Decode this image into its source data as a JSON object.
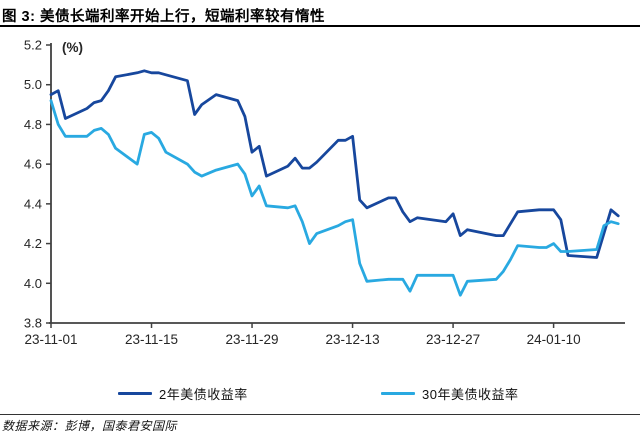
{
  "header": {
    "title": "图 3:  美债长端利率开始上行，短端利率较有惰性"
  },
  "legend": [
    {
      "label": "2年美债收益率"
    },
    {
      "label": "30年美债收益率"
    }
  ],
  "footer": {
    "source": "数据来源：彭博，国泰君安国际"
  },
  "colors": {
    "series_2y": "#17479D",
    "series_30y": "#29A9E1",
    "axis": "#404040",
    "tick_text": "#262626"
  },
  "chart_data": {
    "type": "line",
    "title": "图 3: 美债长端利率开始上行，短端利率较有惰性",
    "unit_label": "(%)",
    "xlabel": "",
    "ylabel": "%",
    "ylim": [
      3.8,
      5.2
    ],
    "y_ticks": [
      "5.2",
      "5.0",
      "4.8",
      "4.6",
      "4.4",
      "4.2",
      "4.0",
      "3.8"
    ],
    "x_start": "23-11-01",
    "x_end": "24-01-19",
    "x_ticks": [
      "23-11-01",
      "23-11-15",
      "23-11-29",
      "23-12-13",
      "23-12-27",
      "24-01-10"
    ],
    "grid": false,
    "legend_position": "bottom",
    "dates": [
      "23-11-01",
      "23-11-02",
      "23-11-03",
      "23-11-06",
      "23-11-07",
      "23-11-08",
      "23-11-09",
      "23-11-10",
      "23-11-13",
      "23-11-14",
      "23-11-15",
      "23-11-16",
      "23-11-17",
      "23-11-20",
      "23-11-21",
      "23-11-22",
      "23-11-24",
      "23-11-27",
      "23-11-28",
      "23-11-29",
      "23-11-30",
      "23-12-01",
      "23-12-04",
      "23-12-05",
      "23-12-06",
      "23-12-07",
      "23-12-08",
      "23-12-11",
      "23-12-12",
      "23-12-13",
      "23-12-14",
      "23-12-15",
      "23-12-18",
      "23-12-19",
      "23-12-20",
      "23-12-21",
      "23-12-22",
      "23-12-26",
      "23-12-27",
      "23-12-28",
      "23-12-29",
      "24-01-02",
      "24-01-03",
      "24-01-04",
      "24-01-05",
      "24-01-08",
      "24-01-09",
      "24-01-10",
      "24-01-11",
      "24-01-12",
      "24-01-16",
      "24-01-17",
      "24-01-18",
      "24-01-19"
    ],
    "series": [
      {
        "name": "2年美债收益率",
        "color": "#17479D",
        "values": [
          4.95,
          4.97,
          4.83,
          4.88,
          4.91,
          4.92,
          4.97,
          5.04,
          5.06,
          5.07,
          5.06,
          5.06,
          5.05,
          5.02,
          4.85,
          4.9,
          4.95,
          4.92,
          4.84,
          4.66,
          4.69,
          4.54,
          4.59,
          4.63,
          4.58,
          4.58,
          4.61,
          4.72,
          4.72,
          4.74,
          4.42,
          4.38,
          4.43,
          4.43,
          4.36,
          4.31,
          4.33,
          4.31,
          4.35,
          4.24,
          4.27,
          4.24,
          4.24,
          4.3,
          4.36,
          4.37,
          4.37,
          4.37,
          4.32,
          4.14,
          4.13,
          4.25,
          4.37,
          4.34
        ]
      },
      {
        "name": "30年美债收益率",
        "color": "#29A9E1",
        "values": [
          4.92,
          4.8,
          4.74,
          4.74,
          4.77,
          4.78,
          4.75,
          4.68,
          4.6,
          4.75,
          4.76,
          4.73,
          4.66,
          4.6,
          4.56,
          4.54,
          4.57,
          4.6,
          4.55,
          4.44,
          4.49,
          4.39,
          4.38,
          4.39,
          4.31,
          4.2,
          4.25,
          4.29,
          4.31,
          4.32,
          4.1,
          4.01,
          4.02,
          4.02,
          4.02,
          3.96,
          4.04,
          4.04,
          4.04,
          3.94,
          4.01,
          4.02,
          4.06,
          4.12,
          4.19,
          4.18,
          4.18,
          4.2,
          4.16,
          4.16,
          4.17,
          4.29,
          4.31,
          4.3
        ]
      }
    ]
  }
}
